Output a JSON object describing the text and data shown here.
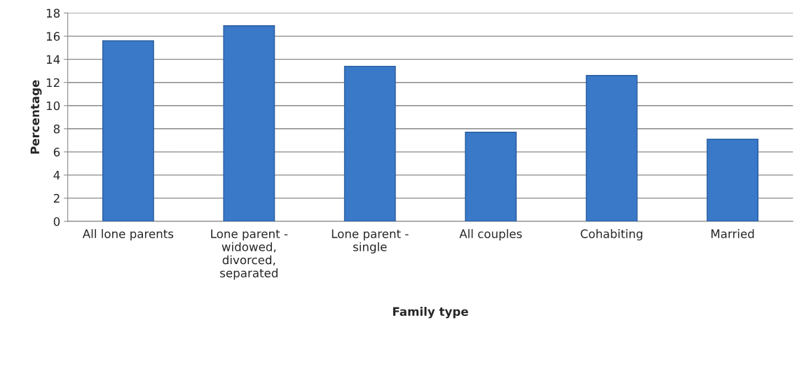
{
  "chart_data": {
    "type": "bar",
    "xlabel": "Family type",
    "ylabel": "Percentage",
    "categories": [
      "All lone parents",
      "Lone parent -\nwidowed,\ndivorced,\nseparated",
      "Lone parent -\nsingle",
      "All couples",
      "Cohabiting",
      "Married"
    ],
    "values": [
      15.6,
      16.9,
      13.4,
      7.7,
      12.6,
      7.1
    ],
    "color": "#3a78c8",
    "ylim": [
      0,
      18
    ],
    "yticks": [
      0,
      2,
      4,
      6,
      8,
      10,
      12,
      14,
      16,
      18
    ],
    "grid": "y",
    "legend": false
  }
}
